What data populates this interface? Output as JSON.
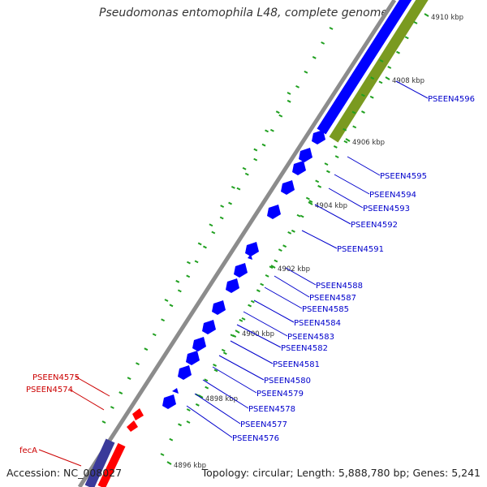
{
  "title": "Pseudomonas entomophila L48, complete genome",
  "footer": {
    "accession": "Accession: NC_008027",
    "summary": "Topology: circular; Length: 5,888,780 bp; Genes: 5,241"
  },
  "colors": {
    "forward_gene": "#0000ff",
    "reverse_gene": "#ff0000",
    "backbone": "#8c8c8c",
    "green_track": "#7a9a20",
    "purple_track": "#3a3a9a",
    "gc_ticks": "#20a020",
    "fwd_label": "#0000cc",
    "rev_label": "#cc0000"
  },
  "kbp_ticks": [
    "4910 kbp",
    "4908 kbp",
    "4906 kbp",
    "4904 kbp",
    "4902 kbp",
    "4900 kbp",
    "4898 kbp",
    "4896 kbp"
  ],
  "forward_genes": [
    "PSEEN4596",
    "PSEEN4595",
    "PSEEN4594",
    "PSEEN4593",
    "PSEEN4592",
    "PSEEN4591",
    "PSEEN4588",
    "PSEEN4587",
    "PSEEN4585",
    "PSEEN4584",
    "PSEEN4583",
    "PSEEN4582",
    "PSEEN4581",
    "PSEEN4580",
    "PSEEN4579",
    "PSEEN4578",
    "PSEEN4577",
    "PSEEN4576"
  ],
  "reverse_genes": [
    "PSEEN4575",
    "PSEEN4574",
    "fecA"
  ]
}
